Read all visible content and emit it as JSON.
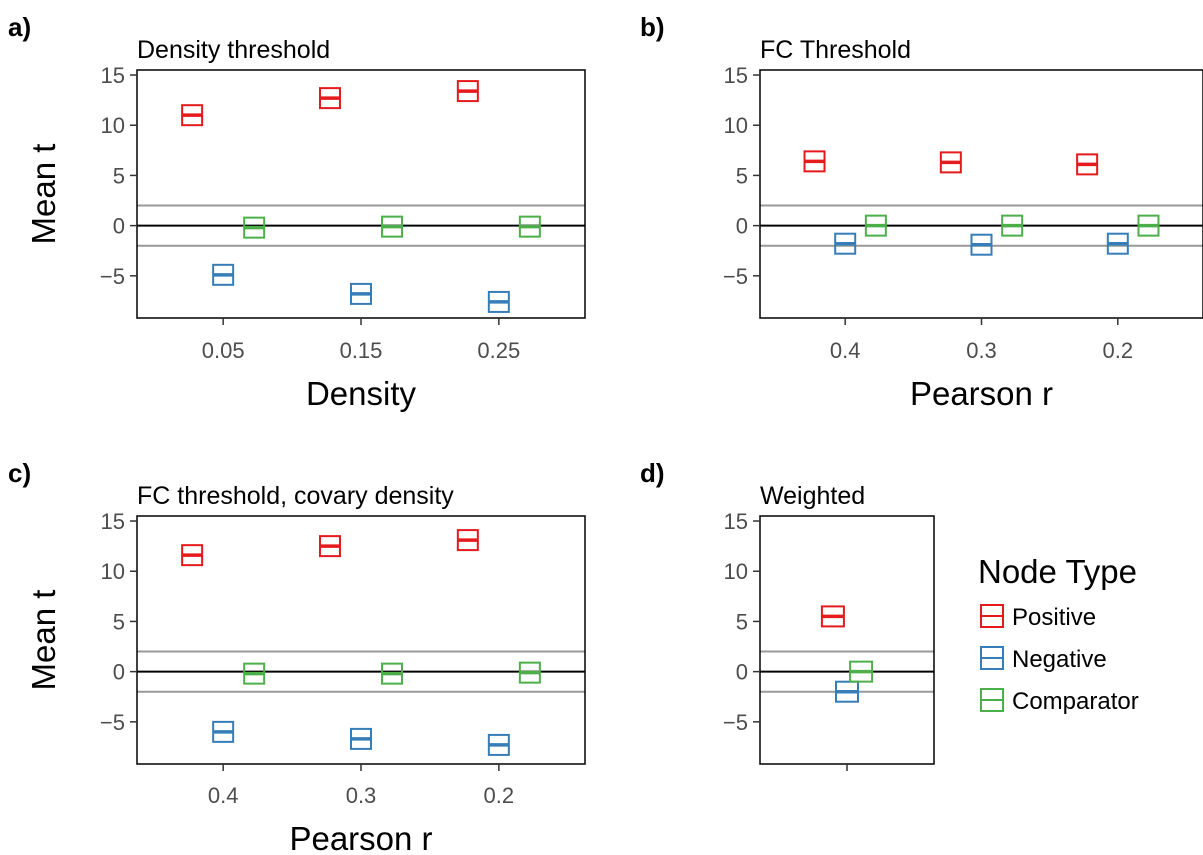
{
  "colors": {
    "Positive": "#e41a1c",
    "Negative": "#377eb8",
    "Comparator": "#4daf4a",
    "ref_line": "#999999",
    "zero_line": "#000000"
  },
  "legend": {
    "title": "Node Type",
    "items": [
      "Positive",
      "Negative",
      "Comparator"
    ]
  },
  "chart_data": [
    {
      "panel_label": "a)",
      "type": "scatter",
      "title": "Density threshold",
      "xlabel": "Density",
      "ylabel": "Mean t",
      "categories": [
        "0.05",
        "0.15",
        "0.25"
      ],
      "ylim": [
        -9.2,
        15.5
      ],
      "yticks": [
        "15",
        "10",
        "5",
        "0",
        "−5"
      ],
      "reference_lines": [
        2,
        -2
      ],
      "series": [
        {
          "name": "Positive",
          "values": [
            11.0,
            12.7,
            13.4
          ]
        },
        {
          "name": "Negative",
          "values": [
            -4.9,
            -6.8,
            -7.6
          ]
        },
        {
          "name": "Comparator",
          "values": [
            -0.2,
            -0.1,
            -0.1
          ]
        }
      ]
    },
    {
      "panel_label": "b)",
      "type": "scatter",
      "title": "FC Threshold",
      "xlabel": "Pearson r",
      "ylabel": "",
      "categories": [
        "0.4",
        "0.3",
        "0.2"
      ],
      "ylim": [
        -9.2,
        15.5
      ],
      "yticks": [
        "15",
        "10",
        "5",
        "0",
        "−5"
      ],
      "reference_lines": [
        2,
        -2
      ],
      "series": [
        {
          "name": "Positive",
          "values": [
            6.4,
            6.3,
            6.1
          ]
        },
        {
          "name": "Negative",
          "values": [
            -1.8,
            -1.9,
            -1.8
          ]
        },
        {
          "name": "Comparator",
          "values": [
            0.0,
            0.0,
            0.0
          ]
        }
      ]
    },
    {
      "panel_label": "c)",
      "type": "scatter",
      "title": "FC threshold, covary density",
      "xlabel": "Pearson r",
      "ylabel": "Mean t",
      "categories": [
        "0.4",
        "0.3",
        "0.2"
      ],
      "ylim": [
        -9.2,
        15.5
      ],
      "yticks": [
        "15",
        "10",
        "5",
        "0",
        "−5"
      ],
      "reference_lines": [
        2,
        -2
      ],
      "series": [
        {
          "name": "Positive",
          "values": [
            11.6,
            12.5,
            13.1
          ]
        },
        {
          "name": "Negative",
          "values": [
            -6.0,
            -6.7,
            -7.3
          ]
        },
        {
          "name": "Comparator",
          "values": [
            -0.2,
            -0.2,
            -0.1
          ]
        }
      ]
    },
    {
      "panel_label": "d)",
      "type": "scatter",
      "title": "Weighted",
      "xlabel": "",
      "ylabel": "",
      "categories": [
        ""
      ],
      "ylim": [
        -9.2,
        15.5
      ],
      "yticks": [
        "15",
        "10",
        "5",
        "0",
        "−5"
      ],
      "reference_lines": [
        2,
        -2
      ],
      "series": [
        {
          "name": "Positive",
          "values": [
            5.5
          ]
        },
        {
          "name": "Negative",
          "values": [
            -2.0
          ]
        },
        {
          "name": "Comparator",
          "values": [
            0.0
          ]
        }
      ]
    }
  ]
}
